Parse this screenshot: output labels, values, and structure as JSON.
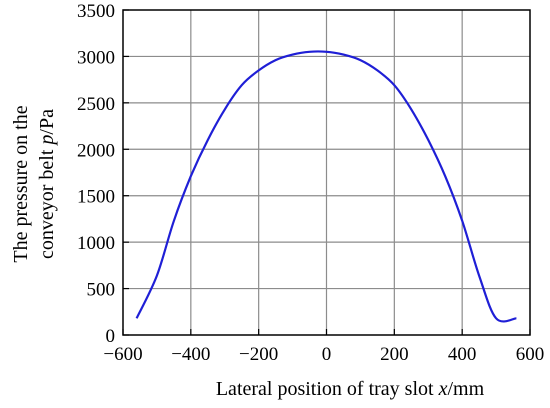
{
  "chart_data": {
    "type": "line",
    "xlabel_prefix": "Lateral position of tray slot ",
    "xlabel_var": "x",
    "xlabel_suffix": "/mm",
    "ylabel_line1": "The pressure on the",
    "ylabel_line2_prefix": "conveyor belt ",
    "ylabel_line2_var": "p",
    "ylabel_line2_suffix": "/Pa",
    "xlim": [
      -600,
      600
    ],
    "ylim": [
      0,
      3500
    ],
    "xticks": [
      -600,
      -400,
      -200,
      0,
      200,
      400,
      600
    ],
    "xtick_labels": [
      "−600",
      "−400",
      "−200",
      "0",
      "200",
      "400",
      "600"
    ],
    "yticks": [
      0,
      500,
      1000,
      1500,
      2000,
      2500,
      3000,
      3500
    ],
    "ytick_labels": [
      "0",
      "500",
      "1000",
      "1500",
      "2000",
      "2500",
      "3000",
      "3500"
    ],
    "grid": true,
    "series": [
      {
        "color": "#1f1fd6",
        "x": [
          -560,
          -500,
          -450,
          -400,
          -350,
          -300,
          -250,
          -200,
          -150,
          -100,
          -50,
          0,
          50,
          100,
          150,
          200,
          250,
          300,
          350,
          400,
          450,
          500,
          560
        ],
        "y": [
          180,
          640,
          1230,
          1710,
          2100,
          2430,
          2690,
          2850,
          2960,
          3020,
          3050,
          3050,
          3020,
          2960,
          2850,
          2690,
          2430,
          2100,
          1710,
          1230,
          640,
          180,
          180
        ]
      }
    ]
  }
}
